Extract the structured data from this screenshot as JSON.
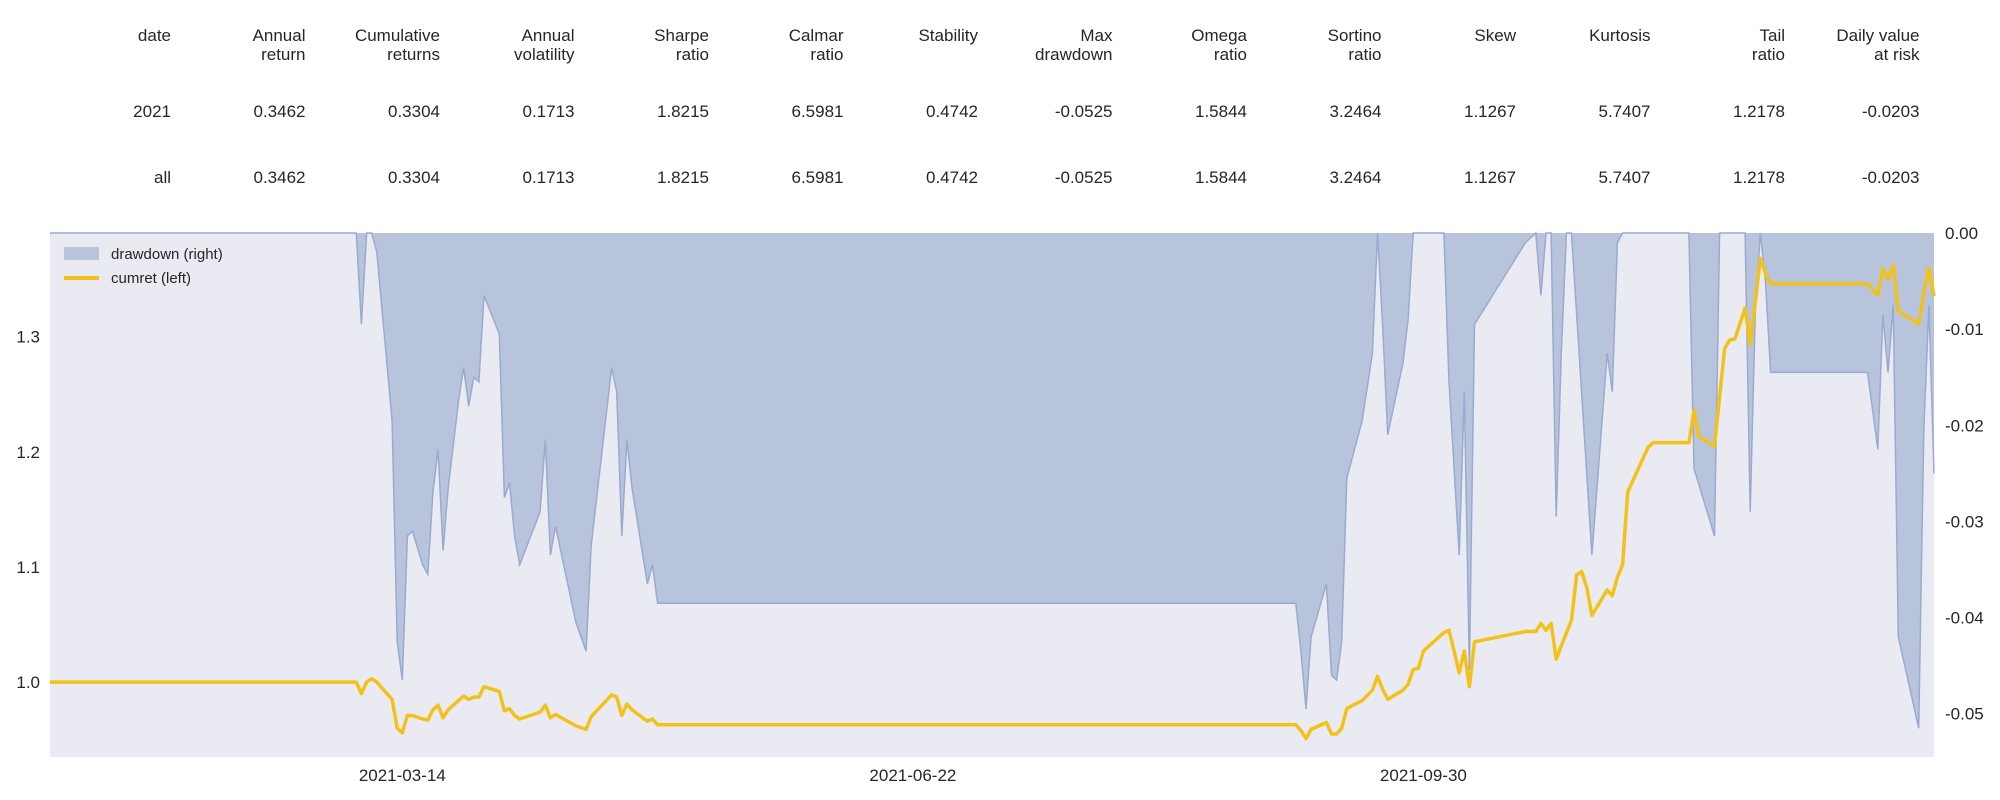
{
  "table": {
    "headers": [
      "date",
      "Annual\nreturn",
      "Cumulative\nreturns",
      "Annual\nvolatility",
      "Sharpe\nratio",
      "Calmar\nratio",
      "Stability",
      "Max\ndrawdown",
      "Omega\nratio",
      "Sortino\nratio",
      "Skew",
      "Kurtosis",
      "Tail\nratio",
      "Daily value\nat risk"
    ],
    "rows": [
      [
        "2021",
        "0.3462",
        "0.3304",
        "0.1713",
        "1.8215",
        "6.5981",
        "0.4742",
        "-0.0525",
        "1.5844",
        "3.2464",
        "1.1267",
        "5.7407",
        "1.2178",
        "-0.0203"
      ],
      [
        "all",
        "0.3462",
        "0.3304",
        "0.1713",
        "1.8215",
        "6.5981",
        "0.4742",
        "-0.0525",
        "1.5844",
        "3.2464",
        "1.1267",
        "5.7407",
        "1.2178",
        "-0.0203"
      ]
    ]
  },
  "chart_data": {
    "type": "area",
    "x_axis": {
      "type": "date",
      "ticks": [
        "2021-03-14",
        "2021-06-22",
        "2021-09-30"
      ]
    },
    "y_left": {
      "range": [
        0.935,
        1.39
      ],
      "ticks": [
        1.0,
        1.1,
        1.2,
        1.3
      ],
      "tick_labels": [
        "1.0",
        "1.1",
        "1.2",
        "1.3"
      ]
    },
    "y_right": {
      "range": [
        -0.0545,
        0.0
      ],
      "ticks": [
        0.0,
        -0.01,
        -0.02,
        -0.03,
        -0.04,
        -0.05
      ],
      "tick_labels": [
        "0.00",
        "-0.01",
        "-0.02",
        "-0.03",
        "-0.04",
        "-0.05"
      ]
    },
    "legend": {
      "placement": "top-left",
      "entries": [
        "drawdown (right)",
        "cumret (left)"
      ]
    },
    "grid": false,
    "colors": {
      "background": "#EAEAF2",
      "drawdown_fill": "#B8C4DC",
      "drawdown_line": "#9AAAD0",
      "cumret_line": "#F2C21B"
    },
    "series": [
      {
        "name": "drawdown (right)",
        "axis": "right",
        "type": "area",
        "points": [
          [
            "2021-01-04",
            0.0
          ],
          [
            "2021-03-05",
            0.0
          ],
          [
            "2021-03-06",
            -0.0095
          ],
          [
            "2021-03-07",
            0.0
          ],
          [
            "2021-03-08",
            0.0
          ],
          [
            "2021-03-09",
            -0.002
          ],
          [
            "2021-03-12",
            -0.0195
          ],
          [
            "2021-03-13",
            -0.0425
          ],
          [
            "2021-03-14",
            -0.0465
          ],
          [
            "2021-03-15",
            -0.0315
          ],
          [
            "2021-03-16",
            -0.031
          ],
          [
            "2021-03-18",
            -0.0345
          ],
          [
            "2021-03-19",
            -0.0355
          ],
          [
            "2021-03-20",
            -0.027
          ],
          [
            "2021-03-21",
            -0.0225
          ],
          [
            "2021-03-22",
            -0.033
          ],
          [
            "2021-03-23",
            -0.0265
          ],
          [
            "2021-03-25",
            -0.0175
          ],
          [
            "2021-03-26",
            -0.014
          ],
          [
            "2021-03-27",
            -0.018
          ],
          [
            "2021-03-28",
            -0.015
          ],
          [
            "2021-03-29",
            -0.0155
          ],
          [
            "2021-03-30",
            -0.0065
          ],
          [
            "2021-04-02",
            -0.0105
          ],
          [
            "2021-04-03",
            -0.0275
          ],
          [
            "2021-04-04",
            -0.026
          ],
          [
            "2021-04-05",
            -0.0315
          ],
          [
            "2021-04-06",
            -0.0345
          ],
          [
            "2021-04-10",
            -0.029
          ],
          [
            "2021-04-11",
            -0.0215
          ],
          [
            "2021-04-12",
            -0.0335
          ],
          [
            "2021-04-13",
            -0.0305
          ],
          [
            "2021-04-17",
            -0.0405
          ],
          [
            "2021-04-19",
            -0.0435
          ],
          [
            "2021-04-20",
            -0.0325
          ],
          [
            "2021-04-24",
            -0.014
          ],
          [
            "2021-04-25",
            -0.0165
          ],
          [
            "2021-04-26",
            -0.0315
          ],
          [
            "2021-04-27",
            -0.0215
          ],
          [
            "2021-04-28",
            -0.0265
          ],
          [
            "2021-05-01",
            -0.0365
          ],
          [
            "2021-05-02",
            -0.0345
          ],
          [
            "2021-05-03",
            -0.0385
          ],
          [
            "2021-06-22",
            -0.0385
          ],
          [
            "2021-09-05",
            -0.0385
          ],
          [
            "2021-09-06",
            -0.0435
          ],
          [
            "2021-09-07",
            -0.0495
          ],
          [
            "2021-09-08",
            -0.042
          ],
          [
            "2021-09-11",
            -0.0365
          ],
          [
            "2021-09-12",
            -0.046
          ],
          [
            "2021-09-13",
            -0.0465
          ],
          [
            "2021-09-14",
            -0.0425
          ],
          [
            "2021-09-15",
            -0.0255
          ],
          [
            "2021-09-18",
            -0.0195
          ],
          [
            "2021-09-20",
            -0.0125
          ],
          [
            "2021-09-21",
            0.0
          ],
          [
            "2021-09-22",
            -0.0095
          ],
          [
            "2021-09-23",
            -0.021
          ],
          [
            "2021-09-26",
            -0.0135
          ],
          [
            "2021-09-27",
            -0.009
          ],
          [
            "2021-09-28",
            0.0
          ],
          [
            "2021-10-04",
            0.0
          ],
          [
            "2021-10-05",
            -0.0155
          ],
          [
            "2021-10-07",
            -0.0335
          ],
          [
            "2021-10-08",
            -0.0165
          ],
          [
            "2021-10-09",
            -0.0455
          ],
          [
            "2021-10-10",
            -0.0095
          ],
          [
            "2021-10-20",
            -0.001
          ],
          [
            "2021-10-22",
            0.0
          ],
          [
            "2021-10-23",
            -0.0065
          ],
          [
            "2021-10-24",
            0.0
          ],
          [
            "2021-10-25",
            0.0
          ],
          [
            "2021-10-26",
            -0.0295
          ],
          [
            "2021-10-27",
            -0.0125
          ],
          [
            "2021-10-28",
            0.0
          ],
          [
            "2021-10-29",
            0.0
          ],
          [
            "2021-11-02",
            -0.0335
          ],
          [
            "2021-11-05",
            -0.0125
          ],
          [
            "2021-11-06",
            -0.0165
          ],
          [
            "2021-11-07",
            -0.001
          ],
          [
            "2021-11-08",
            0.0
          ],
          [
            "2021-11-21",
            0.0
          ],
          [
            "2021-11-22",
            -0.0245
          ],
          [
            "2021-11-26",
            -0.0315
          ],
          [
            "2021-11-27",
            0.0
          ],
          [
            "2021-11-28",
            0.0
          ],
          [
            "2021-11-29",
            0.0
          ],
          [
            "2021-12-02",
            0.0
          ],
          [
            "2021-12-03",
            -0.029
          ],
          [
            "2021-12-04",
            -0.008
          ],
          [
            "2021-12-05",
            0.0
          ],
          [
            "2021-12-06",
            -0.005
          ],
          [
            "2021-12-07",
            -0.0145
          ],
          [
            "2021-12-26",
            -0.0145
          ],
          [
            "2021-12-28",
            -0.0225
          ],
          [
            "2021-12-29",
            -0.0085
          ],
          [
            "2021-12-30",
            -0.0145
          ],
          [
            "2021-12-31",
            -0.0075
          ],
          [
            "2022-01-01",
            -0.042
          ],
          [
            "2022-01-05",
            -0.0515
          ],
          [
            "2022-01-06",
            -0.0205
          ],
          [
            "2022-01-07",
            -0.0075
          ],
          [
            "2022-01-08",
            -0.025
          ]
        ]
      },
      {
        "name": "cumret (left)",
        "axis": "left",
        "type": "line",
        "points": [
          [
            "2021-01-04",
            1.0
          ],
          [
            "2021-03-05",
            1.0
          ],
          [
            "2021-03-06",
            0.99
          ],
          [
            "2021-03-07",
            1.0
          ],
          [
            "2021-03-08",
            1.003
          ],
          [
            "2021-03-09",
            1.0
          ],
          [
            "2021-03-12",
            0.985
          ],
          [
            "2021-03-13",
            0.96
          ],
          [
            "2021-03-14",
            0.956
          ],
          [
            "2021-03-15",
            0.971
          ],
          [
            "2021-03-16",
            0.971
          ],
          [
            "2021-03-18",
            0.968
          ],
          [
            "2021-03-19",
            0.967
          ],
          [
            "2021-03-20",
            0.976
          ],
          [
            "2021-03-21",
            0.98
          ],
          [
            "2021-03-22",
            0.969
          ],
          [
            "2021-03-23",
            0.976
          ],
          [
            "2021-03-25",
            0.984
          ],
          [
            "2021-03-26",
            0.988
          ],
          [
            "2021-03-27",
            0.985
          ],
          [
            "2021-03-28",
            0.987
          ],
          [
            "2021-03-29",
            0.987
          ],
          [
            "2021-03-30",
            0.996
          ],
          [
            "2021-04-02",
            0.992
          ],
          [
            "2021-04-03",
            0.975
          ],
          [
            "2021-04-04",
            0.977
          ],
          [
            "2021-04-05",
            0.971
          ],
          [
            "2021-04-06",
            0.968
          ],
          [
            "2021-04-10",
            0.974
          ],
          [
            "2021-04-11",
            0.98
          ],
          [
            "2021-04-12",
            0.969
          ],
          [
            "2021-04-13",
            0.972
          ],
          [
            "2021-04-17",
            0.962
          ],
          [
            "2021-04-19",
            0.959
          ],
          [
            "2021-04-20",
            0.97
          ],
          [
            "2021-04-24",
            0.989
          ],
          [
            "2021-04-25",
            0.987
          ],
          [
            "2021-04-26",
            0.971
          ],
          [
            "2021-04-27",
            0.981
          ],
          [
            "2021-04-28",
            0.976
          ],
          [
            "2021-05-01",
            0.966
          ],
          [
            "2021-05-02",
            0.968
          ],
          [
            "2021-05-03",
            0.963
          ],
          [
            "2021-06-22",
            0.963
          ],
          [
            "2021-09-05",
            0.963
          ],
          [
            "2021-09-06",
            0.958
          ],
          [
            "2021-09-07",
            0.951
          ],
          [
            "2021-09-08",
            0.959
          ],
          [
            "2021-09-11",
            0.965
          ],
          [
            "2021-09-12",
            0.955
          ],
          [
            "2021-09-13",
            0.955
          ],
          [
            "2021-09-14",
            0.96
          ],
          [
            "2021-09-15",
            0.977
          ],
          [
            "2021-09-18",
            0.984
          ],
          [
            "2021-09-20",
            0.993
          ],
          [
            "2021-09-21",
            1.005
          ],
          [
            "2021-09-22",
            0.994
          ],
          [
            "2021-09-23",
            0.985
          ],
          [
            "2021-09-26",
            0.993
          ],
          [
            "2021-09-27",
            0.998
          ],
          [
            "2021-09-28",
            1.011
          ],
          [
            "2021-09-29",
            1.012
          ],
          [
            "2021-09-30",
            1.027
          ],
          [
            "2021-10-04",
            1.043
          ],
          [
            "2021-10-05",
            1.045
          ],
          [
            "2021-10-06",
            1.027
          ],
          [
            "2021-10-07",
            1.008
          ],
          [
            "2021-10-08",
            1.027
          ],
          [
            "2021-10-09",
            0.996
          ],
          [
            "2021-10-10",
            1.035
          ],
          [
            "2021-10-20",
            1.044
          ],
          [
            "2021-10-22",
            1.044
          ],
          [
            "2021-10-23",
            1.051
          ],
          [
            "2021-10-24",
            1.045
          ],
          [
            "2021-10-25",
            1.051
          ],
          [
            "2021-10-26",
            1.02
          ],
          [
            "2021-10-29",
            1.054
          ],
          [
            "2021-10-30",
            1.093
          ],
          [
            "2021-10-31",
            1.096
          ],
          [
            "2021-11-01",
            1.082
          ],
          [
            "2021-11-02",
            1.058
          ],
          [
            "2021-11-05",
            1.08
          ],
          [
            "2021-11-06",
            1.075
          ],
          [
            "2021-11-07",
            1.091
          ],
          [
            "2021-11-08",
            1.102
          ],
          [
            "2021-11-09",
            1.165
          ],
          [
            "2021-11-13",
            1.204
          ],
          [
            "2021-11-14",
            1.208
          ],
          [
            "2021-11-21",
            1.208
          ],
          [
            "2021-11-22",
            1.236
          ],
          [
            "2021-11-23",
            1.213
          ],
          [
            "2021-11-26",
            1.205
          ],
          [
            "2021-11-28",
            1.29
          ],
          [
            "2021-11-29",
            1.297
          ],
          [
            "2021-11-30",
            1.298
          ],
          [
            "2021-12-02",
            1.325
          ],
          [
            "2021-12-03",
            1.293
          ],
          [
            "2021-12-04",
            1.33
          ],
          [
            "2021-12-05",
            1.368
          ],
          [
            "2021-12-06",
            1.355
          ],
          [
            "2021-12-07",
            1.346
          ],
          [
            "2021-12-26",
            1.346
          ],
          [
            "2021-12-28",
            1.336
          ],
          [
            "2021-12-29",
            1.359
          ],
          [
            "2021-12-30",
            1.35
          ],
          [
            "2021-12-31",
            1.362
          ],
          [
            "2022-01-01",
            1.322
          ],
          [
            "2022-01-05",
            1.311
          ],
          [
            "2022-01-06",
            1.337
          ],
          [
            "2022-01-07",
            1.36
          ],
          [
            "2022-01-08",
            1.335
          ]
        ]
      }
    ]
  }
}
